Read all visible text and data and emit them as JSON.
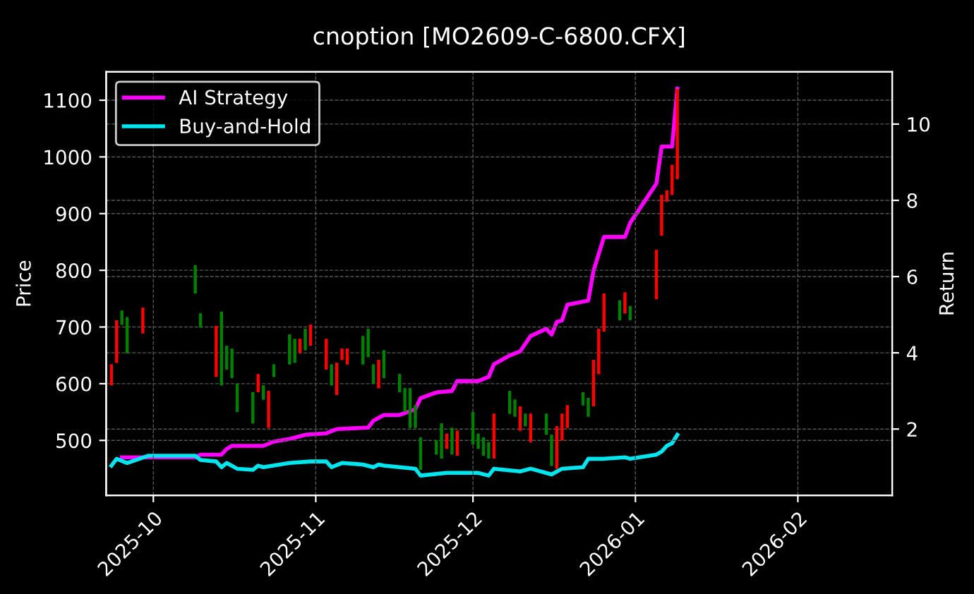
{
  "chart_data": {
    "type": "candlestick",
    "title": "cnoption [MO2609-C-6800.CFX]",
    "ylabel": "Price",
    "y2label": "Return",
    "x": [
      "2025-09-23",
      "2025-09-24",
      "2025-09-25",
      "2025-09-26",
      "2025-09-29",
      "2025-10-09",
      "2025-10-10",
      "2025-10-13",
      "2025-10-14",
      "2025-10-15",
      "2025-10-16",
      "2025-10-17",
      "2025-10-20",
      "2025-10-21",
      "2025-10-22",
      "2025-10-23",
      "2025-10-24",
      "2025-10-27",
      "2025-10-28",
      "2025-10-29",
      "2025-10-30",
      "2025-10-31",
      "2025-11-03",
      "2025-11-04",
      "2025-11-05",
      "2025-11-06",
      "2025-11-07",
      "2025-11-10",
      "2025-11-11",
      "2025-11-12",
      "2025-11-13",
      "2025-11-14",
      "2025-11-17",
      "2025-11-18",
      "2025-11-19",
      "2025-11-20",
      "2025-11-21",
      "2025-11-24",
      "2025-11-25",
      "2025-11-26",
      "2025-11-27",
      "2025-11-28",
      "2025-12-01",
      "2025-12-02",
      "2025-12-03",
      "2025-12-04",
      "2025-12-05",
      "2025-12-08",
      "2025-12-09",
      "2025-12-10",
      "2025-12-11",
      "2025-12-12",
      "2025-12-15",
      "2025-12-16",
      "2025-12-17",
      "2025-12-18",
      "2025-12-19",
      "2025-12-22",
      "2025-12-23",
      "2025-12-24",
      "2025-12-25",
      "2025-12-26",
      "2025-12-29",
      "2025-12-30",
      "2025-12-31",
      "2026-01-05",
      "2026-01-06",
      "2026-01-07",
      "2026-01-08",
      "2026-01-09"
    ],
    "ohlc": [
      [
        597,
        634,
        597,
        634
      ],
      [
        637,
        712,
        637,
        712
      ],
      [
        729,
        729,
        704,
        704
      ],
      [
        717,
        717,
        654,
        654
      ],
      [
        689,
        734,
        689,
        734
      ],
      [
        809,
        809,
        759,
        759
      ],
      [
        724,
        724,
        699,
        699
      ],
      [
        612,
        702,
        612,
        702
      ],
      [
        727,
        727,
        597,
        597
      ],
      [
        667,
        667,
        625,
        625
      ],
      [
        662,
        662,
        610,
        610
      ],
      [
        600,
        600,
        550,
        550
      ],
      [
        585,
        585,
        530,
        530
      ],
      [
        585,
        617,
        585,
        617
      ],
      [
        597,
        597,
        572,
        572
      ],
      [
        522,
        587,
        522,
        587
      ],
      [
        634,
        634,
        612,
        612
      ],
      [
        687,
        687,
        634,
        634
      ],
      [
        679,
        679,
        637,
        637
      ],
      [
        654,
        679,
        654,
        679
      ],
      [
        697,
        697,
        659,
        659
      ],
      [
        667,
        704,
        667,
        704
      ],
      [
        625,
        679,
        625,
        679
      ],
      [
        634,
        634,
        597,
        597
      ],
      [
        580,
        637,
        580,
        637
      ],
      [
        642,
        662,
        642,
        662
      ],
      [
        634,
        662,
        634,
        662
      ],
      [
        684,
        684,
        634,
        634
      ],
      [
        697,
        697,
        647,
        647
      ],
      [
        634,
        634,
        600,
        600
      ],
      [
        592,
        642,
        592,
        642
      ],
      [
        659,
        659,
        610,
        610
      ],
      [
        617,
        617,
        585,
        585
      ],
      [
        592,
        592,
        550,
        550
      ],
      [
        592,
        592,
        522,
        522
      ],
      [
        562,
        562,
        522,
        522
      ],
      [
        505,
        505,
        448,
        448
      ],
      [
        500,
        500,
        475,
        475
      ],
      [
        530,
        530,
        468,
        468
      ],
      [
        485,
        512,
        485,
        512
      ],
      [
        522,
        522,
        475,
        475
      ],
      [
        473,
        517,
        473,
        517
      ],
      [
        550,
        550,
        493,
        493
      ],
      [
        512,
        512,
        485,
        485
      ],
      [
        505,
        505,
        473,
        473
      ],
      [
        497,
        497,
        468,
        468
      ],
      [
        468,
        547,
        468,
        547
      ],
      [
        587,
        587,
        547,
        547
      ],
      [
        572,
        572,
        542,
        542
      ],
      [
        517,
        560,
        517,
        560
      ],
      [
        547,
        547,
        525,
        525
      ],
      [
        497,
        547,
        497,
        547
      ],
      [
        547,
        547,
        510,
        510
      ],
      [
        510,
        510,
        455,
        455
      ],
      [
        450,
        525,
        450,
        525
      ],
      [
        500,
        547,
        500,
        547
      ],
      [
        522,
        562,
        522,
        562
      ],
      [
        585,
        585,
        562,
        562
      ],
      [
        575,
        575,
        542,
        542
      ],
      [
        560,
        642,
        560,
        642
      ],
      [
        617,
        697,
        617,
        697
      ],
      [
        692,
        759,
        692,
        759
      ],
      [
        747,
        747,
        712,
        712
      ],
      [
        724,
        761,
        724,
        761
      ],
      [
        737,
        737,
        712,
        712
      ],
      [
        749,
        836,
        749,
        836
      ],
      [
        861,
        933,
        861,
        933
      ],
      [
        921,
        941,
        921,
        941
      ],
      [
        933,
        986,
        933,
        986
      ],
      [
        961,
        1120,
        961,
        1120
      ]
    ],
    "colors": [
      "#ff0000",
      "#ff0000",
      "#008000",
      "#008000",
      "#ff0000",
      "#008000",
      "#008000",
      "#ff0000",
      "#008000",
      "#008000",
      "#008000",
      "#008000",
      "#008000",
      "#ff0000",
      "#008000",
      "#ff0000",
      "#008000",
      "#008000",
      "#008000",
      "#ff0000",
      "#008000",
      "#ff0000",
      "#ff0000",
      "#008000",
      "#ff0000",
      "#ff0000",
      "#ff0000",
      "#008000",
      "#008000",
      "#008000",
      "#ff0000",
      "#008000",
      "#008000",
      "#008000",
      "#008000",
      "#008000",
      "#008000",
      "#008000",
      "#008000",
      "#ff0000",
      "#008000",
      "#ff0000",
      "#008000",
      "#008000",
      "#008000",
      "#008000",
      "#ff0000",
      "#008000",
      "#008000",
      "#ff0000",
      "#008000",
      "#ff0000",
      "#008000",
      "#008000",
      "#ff0000",
      "#ff0000",
      "#ff0000",
      "#008000",
      "#008000",
      "#ff0000",
      "#ff0000",
      "#ff0000",
      "#008000",
      "#ff0000",
      "#008000",
      "#ff0000",
      "#ff0000",
      "#ff0000",
      "#ff0000",
      "#ff0000"
    ],
    "series": [
      {
        "name": "AI Strategy",
        "type": "line",
        "axis": "y2",
        "color": "#ff00ff",
        "x": [
          "2025-09-25",
          "2025-09-30",
          "2025-10-09",
          "2025-10-10",
          "2025-10-14",
          "2025-10-15",
          "2025-10-16",
          "2025-10-22",
          "2025-10-24",
          "2025-10-27",
          "2025-10-30",
          "2025-11-03",
          "2025-11-05",
          "2025-11-11",
          "2025-11-12",
          "2025-11-14",
          "2025-11-17",
          "2025-11-20",
          "2025-11-21",
          "2025-11-24",
          "2025-11-27",
          "2025-11-28",
          "2025-12-02",
          "2025-12-04",
          "2025-12-05",
          "2025-12-08",
          "2025-12-10",
          "2025-12-12",
          "2025-12-15",
          "2025-12-16",
          "2025-12-17",
          "2025-12-18",
          "2025-12-19",
          "2025-12-23",
          "2025-12-24",
          "2025-12-26",
          "2025-12-30",
          "2025-12-31",
          "2026-01-05",
          "2026-01-06",
          "2026-01-07",
          "2026-01-08",
          "2026-01-09"
        ],
        "values": [
          1.26,
          1.26,
          1.26,
          1.33,
          1.33,
          1.48,
          1.56,
          1.56,
          1.67,
          1.74,
          1.85,
          1.89,
          2.0,
          2.04,
          2.22,
          2.37,
          2.37,
          2.52,
          2.81,
          2.96,
          3.0,
          3.26,
          3.26,
          3.37,
          3.7,
          3.93,
          4.04,
          4.44,
          4.63,
          4.48,
          4.81,
          4.85,
          5.26,
          5.37,
          6.15,
          7.04,
          7.04,
          7.41,
          8.44,
          9.41,
          9.41,
          9.41,
          10.93
        ]
      },
      {
        "name": "Buy-and-Hold",
        "type": "line",
        "axis": "y2",
        "color": "#00e5ee",
        "x": [
          "2025-09-23",
          "2025-09-24",
          "2025-09-26",
          "2025-09-30",
          "2025-10-09",
          "2025-10-10",
          "2025-10-13",
          "2025-10-14",
          "2025-10-15",
          "2025-10-17",
          "2025-10-20",
          "2025-10-21",
          "2025-10-22",
          "2025-10-27",
          "2025-10-31",
          "2025-11-03",
          "2025-11-04",
          "2025-11-06",
          "2025-11-10",
          "2025-11-12",
          "2025-11-13",
          "2025-11-14",
          "2025-11-20",
          "2025-11-21",
          "2025-11-26",
          "2025-12-02",
          "2025-12-04",
          "2025-12-05",
          "2025-12-10",
          "2025-12-12",
          "2025-12-16",
          "2025-12-18",
          "2025-12-22",
          "2025-12-23",
          "2025-12-26",
          "2025-12-30",
          "2025-12-31",
          "2026-01-05",
          "2026-01-06",
          "2026-01-07",
          "2026-01-08",
          "2026-01-09"
        ],
        "values": [
          1.04,
          1.22,
          1.11,
          1.3,
          1.3,
          1.19,
          1.15,
          1.0,
          1.11,
          0.96,
          0.93,
          1.04,
          1.0,
          1.11,
          1.15,
          1.15,
          1.0,
          1.11,
          1.07,
          1.0,
          1.07,
          1.04,
          0.96,
          0.78,
          0.85,
          0.85,
          0.78,
          0.96,
          0.89,
          0.96,
          0.81,
          0.96,
          1.0,
          1.22,
          1.22,
          1.26,
          1.22,
          1.33,
          1.41,
          1.56,
          1.63,
          1.85
        ]
      }
    ],
    "xlim": [
      "2025-09-22",
      "2026-02-19"
    ],
    "xticks": [
      {
        "value": "2025-10-01",
        "label": "2025-10"
      },
      {
        "value": "2025-11-01",
        "label": "2025-11"
      },
      {
        "value": "2025-12-01",
        "label": "2025-12"
      },
      {
        "value": "2026-01-01",
        "label": "2026-01"
      },
      {
        "value": "2026-02-01",
        "label": "2026-02"
      }
    ],
    "ylim": [
      403,
      1150
    ],
    "yticks": [
      500,
      600,
      700,
      800,
      900,
      1000,
      1100
    ],
    "y2lim": [
      0.26,
      11.37
    ],
    "y2ticks": [
      2,
      4,
      6,
      8,
      10
    ],
    "grid": true,
    "legend": "top left",
    "line_style": "solid"
  }
}
